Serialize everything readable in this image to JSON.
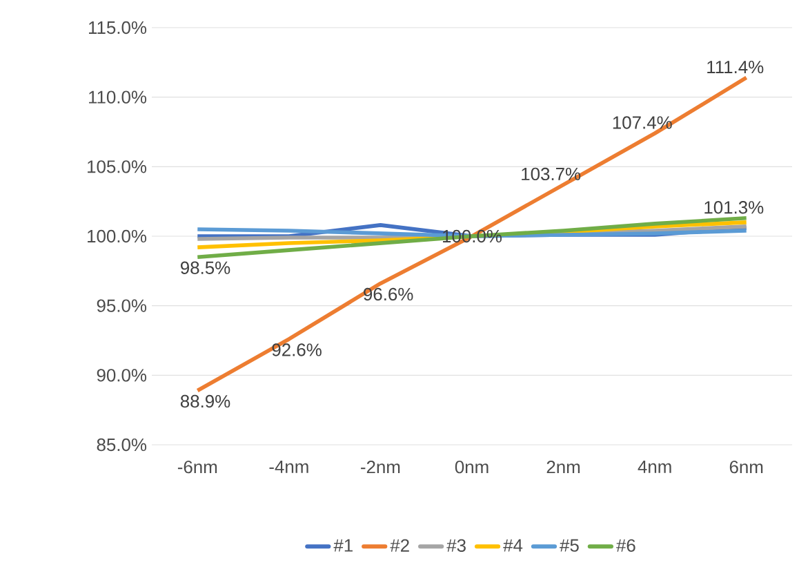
{
  "chart_data": {
    "type": "line",
    "categories": [
      "-6nm",
      "-4nm",
      "-2nm",
      "0nm",
      "2nm",
      "4nm",
      "6nm"
    ],
    "ylim": [
      85,
      115
    ],
    "yticks": [
      {
        "value": 85,
        "label": "85.0%"
      },
      {
        "value": 90,
        "label": "90.0%"
      },
      {
        "value": 95,
        "label": "95.0%"
      },
      {
        "value": 100,
        "label": "100.0%"
      },
      {
        "value": 105,
        "label": "105.0%"
      },
      {
        "value": 110,
        "label": "110.0%"
      },
      {
        "value": 115,
        "label": "115.0%"
      }
    ],
    "grid": "y",
    "legend": "bottom",
    "marker": "none",
    "line_style": "solid",
    "series": [
      {
        "name": "#1",
        "color": "#4472c4",
        "values": [
          100.0,
          100.0,
          100.8,
          100.0,
          100.1,
          100.1,
          100.6
        ]
      },
      {
        "name": "#2",
        "color": "#ed7d31",
        "values": [
          88.9,
          92.6,
          96.6,
          100.0,
          103.7,
          107.4,
          111.4
        ],
        "value_labels": [
          "88.9%",
          "92.6%",
          "96.6%",
          "100.0%",
          "103.7%",
          "107.4%",
          "111.4%"
        ]
      },
      {
        "name": "#3",
        "color": "#a5a5a5",
        "values": [
          99.8,
          99.9,
          99.9,
          100.0,
          100.2,
          100.4,
          100.7
        ]
      },
      {
        "name": "#4",
        "color": "#ffc000",
        "values": [
          99.2,
          99.5,
          99.7,
          100.0,
          100.3,
          100.7,
          101.0
        ]
      },
      {
        "name": "#5",
        "color": "#5b9bd5",
        "values": [
          100.5,
          100.4,
          100.2,
          100.0,
          100.1,
          100.2,
          100.4
        ]
      },
      {
        "name": "#6",
        "color": "#70ad47",
        "values": [
          98.5,
          99.0,
          99.5,
          100.0,
          100.4,
          100.9,
          101.3
        ],
        "value_labels": [
          "98.5%",
          null,
          null,
          null,
          null,
          null,
          "101.3%"
        ]
      }
    ]
  }
}
